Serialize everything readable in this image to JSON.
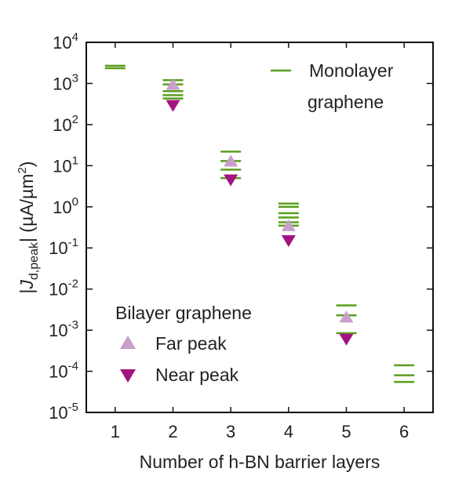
{
  "chart_data": {
    "type": "scatter",
    "title": "",
    "xlabel": "Number of h-BN barrier layers",
    "ylabel": {
      "pre": "|",
      "main": "J",
      "sub": "d,peak",
      "post": "| (µA/µm",
      "sup": "2",
      "end": ")"
    },
    "xlim": [
      0.5,
      6.5
    ],
    "ylim": [
      1e-05,
      10000
    ],
    "yscale": "log",
    "xticks": [
      "1",
      "2",
      "3",
      "4",
      "5",
      "6"
    ],
    "yticks": [
      {
        "base": "10",
        "exp": "4"
      },
      {
        "base": "10",
        "exp": "3"
      },
      {
        "base": "10",
        "exp": "2"
      },
      {
        "base": "10",
        "exp": "1"
      },
      {
        "base": "10",
        "exp": "0"
      },
      {
        "base": "10",
        "exp": "-1"
      },
      {
        "base": "10",
        "exp": "-2"
      },
      {
        "base": "10",
        "exp": "-3"
      },
      {
        "base": "10",
        "exp": "-4"
      },
      {
        "base": "10",
        "exp": "-5"
      }
    ],
    "legend": {
      "monolayer_line1": "Monolayer",
      "monolayer_line2": "graphene",
      "bilayer_title": "Bilayer graphene",
      "far_label": "Far peak",
      "near_label": "Near peak"
    },
    "series": [
      {
        "name": "Monolayer graphene",
        "marker": "dash",
        "color": "#5a9e1e",
        "points": [
          {
            "x": 1,
            "y": 2700
          },
          {
            "x": 1,
            "y": 2350
          },
          {
            "x": 2,
            "y": 1200
          },
          {
            "x": 2,
            "y": 950
          },
          {
            "x": 2,
            "y": 650
          },
          {
            "x": 2,
            "y": 520
          },
          {
            "x": 2,
            "y": 430
          },
          {
            "x": 3,
            "y": 22
          },
          {
            "x": 3,
            "y": 13
          },
          {
            "x": 3,
            "y": 8
          },
          {
            "x": 3,
            "y": 5
          },
          {
            "x": 4,
            "y": 1.2
          },
          {
            "x": 4,
            "y": 1.0
          },
          {
            "x": 4,
            "y": 0.7
          },
          {
            "x": 4,
            "y": 0.55
          },
          {
            "x": 4,
            "y": 0.42
          },
          {
            "x": 4,
            "y": 0.35
          },
          {
            "x": 5,
            "y": 0.004
          },
          {
            "x": 5,
            "y": 0.0023
          },
          {
            "x": 5,
            "y": 0.00085
          },
          {
            "x": 6,
            "y": 0.00014
          },
          {
            "x": 6,
            "y": 8e-05
          },
          {
            "x": 6,
            "y": 5.5e-05
          }
        ]
      },
      {
        "name": "Far peak",
        "marker": "triangle-up",
        "color": "#c9a0c9",
        "points": [
          {
            "x": 2,
            "y": 950
          },
          {
            "x": 3,
            "y": 13
          },
          {
            "x": 4,
            "y": 0.35
          },
          {
            "x": 5,
            "y": 0.0021
          }
        ]
      },
      {
        "name": "Near peak",
        "marker": "triangle-down",
        "color": "#a3137f",
        "points": [
          {
            "x": 2,
            "y": 290
          },
          {
            "x": 3,
            "y": 4.5
          },
          {
            "x": 4,
            "y": 0.15
          },
          {
            "x": 5,
            "y": 0.0006
          }
        ]
      }
    ]
  }
}
